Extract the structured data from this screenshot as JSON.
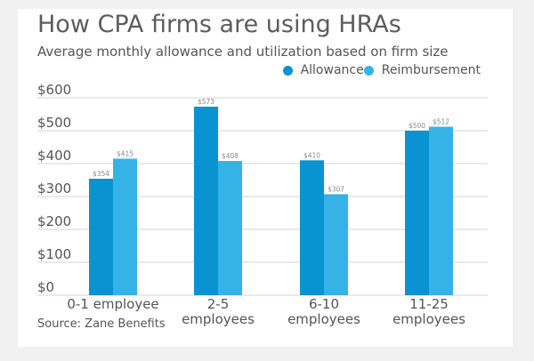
{
  "chart_data": {
    "type": "bar",
    "title": "How CPA firms are using HRAs",
    "subtitle": "Average monthly allowance and utilization based on firm size",
    "source": "Source: Zane Benefits",
    "categories": [
      "0-1 employee",
      "2-5 employees",
      "6-10 employees",
      "11-25 employees"
    ],
    "category_lines": [
      [
        "0-1 employee"
      ],
      [
        "2-5",
        "employees"
      ],
      [
        "6-10",
        "employees"
      ],
      [
        "11-25",
        "employees"
      ]
    ],
    "series": [
      {
        "name": "Allowance",
        "values": [
          354,
          573,
          410,
          500
        ],
        "labels": [
          "$354",
          "$573",
          "$410",
          "$500"
        ],
        "color": "#0a93d1"
      },
      {
        "name": "Reimbursement",
        "values": [
          415,
          408,
          307,
          512
        ],
        "labels": [
          "$415",
          "$408",
          "$307",
          "$512"
        ],
        "color": "#35b3e6"
      }
    ],
    "yticks": [
      0,
      100,
      200,
      300,
      400,
      500,
      600
    ],
    "ytick_labels": [
      "$0",
      "$100",
      "$200",
      "$300",
      "$400",
      "$500",
      "$600"
    ],
    "ylim": [
      0,
      600
    ],
    "grid": true,
    "legend_position": "top-right",
    "xlabel": "",
    "ylabel": ""
  }
}
